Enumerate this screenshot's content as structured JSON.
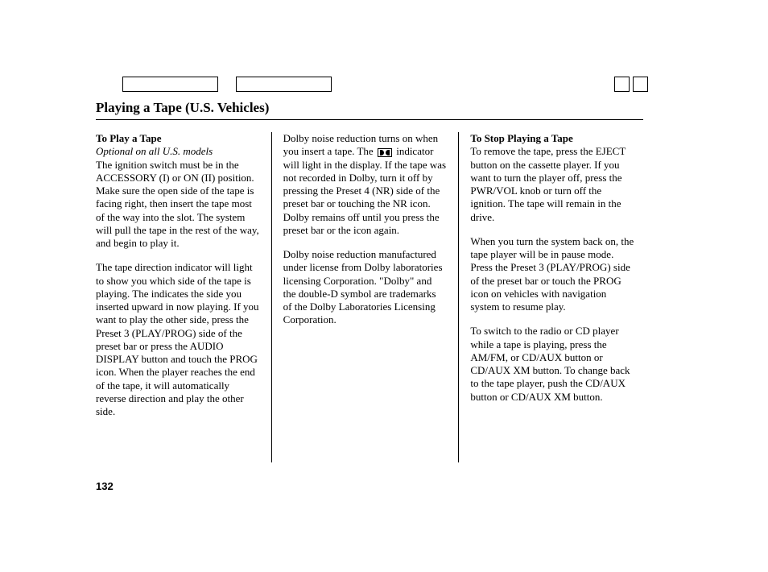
{
  "title": "Playing a Tape (U.S. Vehicles)",
  "page_number": "132",
  "columns": {
    "left": {
      "heading": "To Play a Tape",
      "subnote": "Optional on all U.S. models",
      "p1": "The ignition switch must be in the ACCESSORY (I) or ON (II) position. Make sure the open side of the tape is facing right, then insert the tape most of the way into the slot. The system will pull the tape in the rest of the way, and begin to play it.",
      "p2": "The tape direction indicator will light to show you which side of the tape is playing. The      indicates the side you inserted upward in now playing. If you want to play the other side, press the Preset 3 (PLAY/PROG) side of the preset bar or press the AUDIO DISPLAY button and touch the PROG icon. When the player reaches the end of the tape, it will automatically reverse direction and play the other side."
    },
    "middle": {
      "p1a": "Dolby   noise reduction turns on when you insert a tape. The",
      "p1b": "indicator will light in the display. If the tape was not recorded in Dolby, turn it off by pressing the Preset 4 (NR) side of the preset bar or touching the NR icon. Dolby remains off until you press the preset bar or the icon again.",
      "p2": "   Dolby noise reduction manufactured under license from Dolby laboratories licensing Corporation. \"Dolby\" and the double-D symbol are trademarks of the Dolby Laboratories Licensing Corporation."
    },
    "right": {
      "heading": "To Stop Playing a Tape",
      "p1": "To remove the tape, press the EJECT button on the cassette player. If you want to turn the player off, press the PWR/VOL knob or turn off the ignition. The tape will remain in the drive.",
      "p2": "When you turn the system back on, the tape player will be in pause mode. Press the Preset 3 (PLAY/PROG) side of the preset bar or touch the PROG icon on vehicles with navigation system to resume play.",
      "p3": "To switch to the radio or CD player while a tape is playing, press the AM/FM, or CD/AUX button or CD/AUX XM button. To change back to the tape player, push the CD/AUX button or CD/AUX XM button."
    }
  }
}
